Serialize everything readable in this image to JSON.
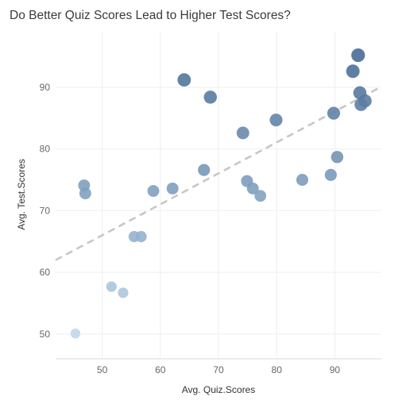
{
  "chart_data": {
    "type": "scatter",
    "title": "Do Better Quiz Scores Lead to Higher Test Scores?",
    "xlabel": "Avg. Quiz.Scores",
    "ylabel": "Avg. Test.Scores",
    "xlim": [
      42,
      98
    ],
    "ylim": [
      46,
      99
    ],
    "x_ticks": [
      "50",
      "60",
      "70",
      "80",
      "90"
    ],
    "y_ticks": [
      "50",
      "60",
      "70",
      "80",
      "90"
    ],
    "grid": true,
    "trend_line": {
      "x": [
        42,
        98
      ],
      "y": [
        62.0,
        90.1
      ]
    },
    "points": [
      {
        "x": 45.4,
        "y": 50.1
      },
      {
        "x": 46.9,
        "y": 74.1
      },
      {
        "x": 47.1,
        "y": 72.8
      },
      {
        "x": 51.6,
        "y": 57.7
      },
      {
        "x": 53.6,
        "y": 56.7
      },
      {
        "x": 55.5,
        "y": 65.8
      },
      {
        "x": 56.7,
        "y": 65.8
      },
      {
        "x": 58.8,
        "y": 73.2
      },
      {
        "x": 62.1,
        "y": 73.6
      },
      {
        "x": 64.1,
        "y": 91.2
      },
      {
        "x": 67.5,
        "y": 76.6
      },
      {
        "x": 68.6,
        "y": 88.4
      },
      {
        "x": 74.2,
        "y": 82.6
      },
      {
        "x": 74.9,
        "y": 74.8
      },
      {
        "x": 75.9,
        "y": 73.6
      },
      {
        "x": 77.2,
        "y": 72.4
      },
      {
        "x": 79.9,
        "y": 84.7
      },
      {
        "x": 84.4,
        "y": 75.0
      },
      {
        "x": 89.3,
        "y": 75.8
      },
      {
        "x": 89.8,
        "y": 85.8
      },
      {
        "x": 90.4,
        "y": 78.7
      },
      {
        "x": 93.1,
        "y": 92.6
      },
      {
        "x": 94.0,
        "y": 95.2
      },
      {
        "x": 94.3,
        "y": 89.1
      },
      {
        "x": 94.5,
        "y": 87.2
      },
      {
        "x": 95.2,
        "y": 87.8
      }
    ]
  }
}
